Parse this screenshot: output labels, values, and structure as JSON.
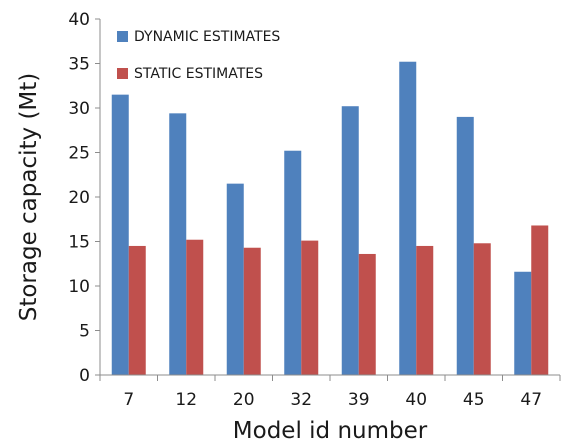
{
  "chart_data": {
    "type": "bar",
    "title": "",
    "xlabel": "Model id number",
    "ylabel": "Storage capacity (Mt)",
    "categories": [
      "7",
      "12",
      "20",
      "32",
      "39",
      "40",
      "45",
      "47"
    ],
    "series": [
      {
        "name": "DYNAMIC ESTIMATES",
        "color": "#4f81bd",
        "values": [
          31.5,
          29.4,
          21.5,
          25.2,
          30.2,
          35.2,
          29.0,
          11.6
        ]
      },
      {
        "name": "STATIC ESTIMATES",
        "color": "#c0504d",
        "values": [
          14.5,
          15.2,
          14.3,
          15.1,
          13.6,
          14.5,
          14.8,
          16.8
        ]
      }
    ],
    "ylim": [
      0,
      40
    ],
    "yticks": [
      "0",
      "5",
      "10",
      "15",
      "20",
      "25",
      "30",
      "35",
      "40"
    ],
    "grid": false,
    "legend_position": "top-left"
  }
}
